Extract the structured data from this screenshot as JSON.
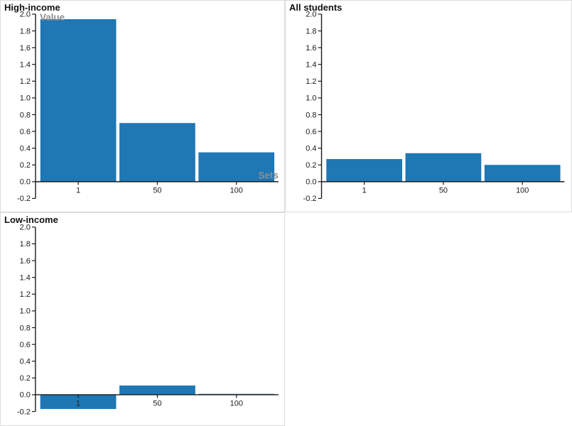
{
  "window": {
    "background": "#ffffff",
    "panel_border_color": "#dcdcdc"
  },
  "style": {
    "bar_color": "#1f77b4",
    "axis_color": "#1a1a1a",
    "tick_label_color": "#1a1a1a",
    "axis_title_color": "#8e8e8e",
    "title_color": "#111111"
  },
  "chart_data": [
    {
      "type": "bar",
      "title": "High-income",
      "categories": [
        "1",
        "50",
        "100"
      ],
      "values": [
        1.94,
        0.7,
        0.35
      ],
      "xlabel": "Sets",
      "ylabel": "Value",
      "ylim": [
        -0.2,
        2.0
      ],
      "ytick_step": 0.2,
      "grid": false,
      "legend": false
    },
    {
      "type": "bar",
      "title": "All students",
      "categories": [
        "1",
        "50",
        "100"
      ],
      "values": [
        0.27,
        0.34,
        0.2
      ],
      "xlabel": "",
      "ylabel": "",
      "ylim": [
        -0.2,
        2.0
      ],
      "ytick_step": 0.2,
      "grid": false,
      "legend": false
    },
    {
      "type": "bar",
      "title": "Low-income",
      "categories": [
        "1",
        "50",
        "100"
      ],
      "values": [
        -0.17,
        0.11,
        0.01
      ],
      "xlabel": "",
      "ylabel": "",
      "ylim": [
        -0.2,
        2.0
      ],
      "ytick_step": 0.2,
      "grid": false,
      "legend": false
    }
  ]
}
